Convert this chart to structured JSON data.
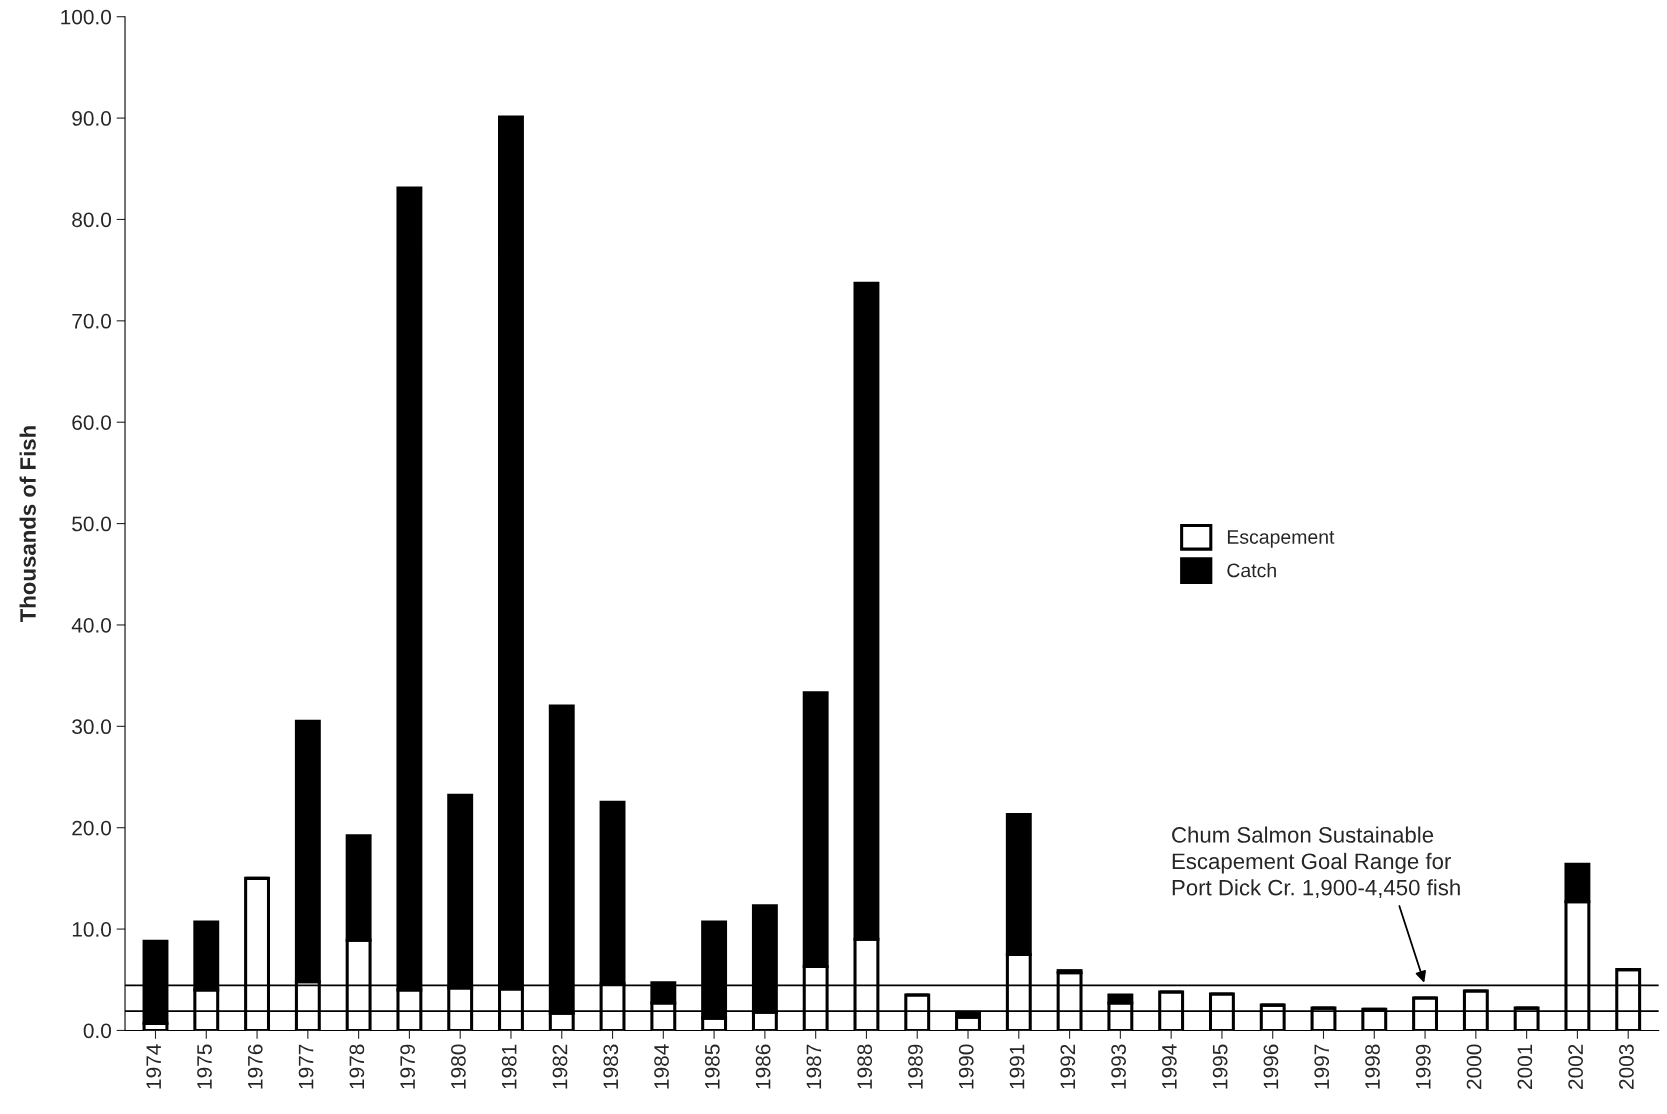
{
  "chart_data": {
    "type": "bar",
    "ylabel": "Thousands of Fish",
    "stacked": true,
    "categories": [
      "1974",
      "1975",
      "1976",
      "1977",
      "1978",
      "1979",
      "1980",
      "1981",
      "1982",
      "1983",
      "1984",
      "1985",
      "1986",
      "1987",
      "1988",
      "1989",
      "1990",
      "1991",
      "1992",
      "1993",
      "1994",
      "1995",
      "1996",
      "1997",
      "1998",
      "1999",
      "2000",
      "2001",
      "2002",
      "2003"
    ],
    "series": [
      {
        "name": "Escapement",
        "color": "#ffffff",
        "values": [
          0.7,
          4.0,
          15.0,
          4.8,
          8.9,
          4.0,
          4.2,
          4.1,
          1.7,
          4.6,
          2.7,
          1.2,
          1.8,
          6.3,
          9.0,
          3.5,
          1.3,
          7.5,
          5.7,
          2.7,
          3.8,
          3.6,
          2.5,
          2.2,
          2.1,
          3.2,
          3.9,
          2.2,
          12.7,
          6.0
        ]
      },
      {
        "name": "Catch",
        "color": "#000000",
        "values": [
          8.1,
          6.7,
          0,
          25.7,
          10.3,
          79.1,
          19.0,
          86.0,
          30.3,
          17.9,
          2.0,
          9.5,
          10.5,
          27.0,
          64.7,
          0,
          0.5,
          13.8,
          0.2,
          0.8,
          0,
          0,
          0,
          0,
          0,
          0,
          0,
          0,
          3.7,
          0
        ]
      }
    ],
    "ylim": [
      0,
      100
    ],
    "yticks": [
      {
        "value": 0,
        "label": "0.0"
      },
      {
        "value": 10,
        "label": "10.0"
      },
      {
        "value": 20,
        "label": "20.0"
      },
      {
        "value": 30,
        "label": "30.0"
      },
      {
        "value": 40,
        "label": "40.0"
      },
      {
        "value": 50,
        "label": "50.0"
      },
      {
        "value": 60,
        "label": "60.0"
      },
      {
        "value": 70,
        "label": "70.0"
      },
      {
        "value": 80,
        "label": "80.0"
      },
      {
        "value": 90,
        "label": "90.0"
      },
      {
        "value": 100,
        "label": "100.0"
      }
    ],
    "ref_lines": [
      {
        "axis": "y",
        "value": 1.9,
        "color": "#000000"
      },
      {
        "axis": "y",
        "value": 4.45,
        "color": "#000000"
      }
    ],
    "annotations": [
      {
        "text": "Chum Salmon Sustainable\nEscapement Goal Range for\nPort Dick Cr. 1,900-4,450 fish",
        "x": "1999",
        "y": 4.45
      }
    ],
    "legend": "right",
    "grid": false
  }
}
